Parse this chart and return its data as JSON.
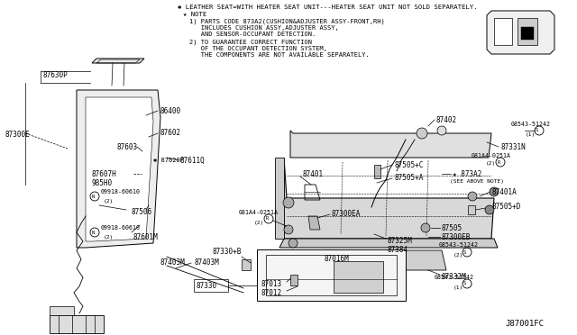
{
  "bg_color": "#ffffff",
  "figsize": [
    6.4,
    3.72
  ],
  "dpi": 100,
  "title_line1": "✱ LEATHER SEAT=WITH HEATER SEAT UNIT---HEATER SEAT UNIT NOT SOLD SEPARATELY.",
  "title_line2": "★ NOTE",
  "note1a": "1) PARTS CODE 873A2(CUSHION&ADJUSTER ASSY-FRONT,RH)",
  "note1b": "   INCLUDES CUSHION ASSY,ADJUSTER ASSY,",
  "note1c": "   AND SENSOR-OCCUPANT DETECTION.",
  "note2a": "2) TO GUARANTEE CORRECT FUNCTION",
  "note2b": "   OF THE OCCUPANT DETECTION SYSTEM,",
  "note2c": "   THE COMPONENTS ARE NOT AVAILABLE SEPARATELY.",
  "watermark": "J87001FC"
}
